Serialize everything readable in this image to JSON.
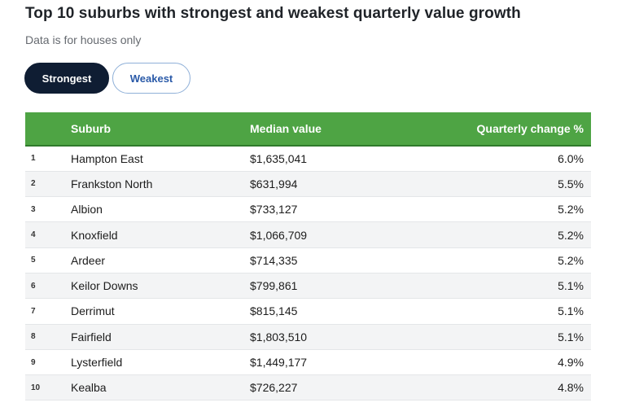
{
  "colors": {
    "accent": "#4ea444",
    "stripe": "#f3f4f5",
    "toggle_active_bg": "#0f1d33",
    "toggle_inactive_text": "#2a5aa8"
  },
  "header": {
    "title": "Top 10 suburbs with strongest and weakest quarterly value growth",
    "subtitle": "Data is for houses only"
  },
  "toggle": {
    "strongest_label": "Strongest",
    "weakest_label": "Weakest",
    "selected": "Strongest"
  },
  "table": {
    "columns": [
      "",
      "Suburb",
      "Median value",
      "Quarterly change %"
    ],
    "rows": [
      {
        "rank": "1",
        "suburb": "Hampton East",
        "median": "$1,635,041",
        "change": "6.0%"
      },
      {
        "rank": "2",
        "suburb": "Frankston North",
        "median": "$631,994",
        "change": "5.5%"
      },
      {
        "rank": "3",
        "suburb": "Albion",
        "median": "$733,127",
        "change": "5.2%"
      },
      {
        "rank": "4",
        "suburb": "Knoxfield",
        "median": "$1,066,709",
        "change": "5.2%"
      },
      {
        "rank": "5",
        "suburb": "Ardeer",
        "median": "$714,335",
        "change": "5.2%"
      },
      {
        "rank": "6",
        "suburb": "Keilor Downs",
        "median": "$799,861",
        "change": "5.1%"
      },
      {
        "rank": "7",
        "suburb": "Derrimut",
        "median": "$815,145",
        "change": "5.1%"
      },
      {
        "rank": "8",
        "suburb": "Fairfield",
        "median": "$1,803,510",
        "change": "5.1%"
      },
      {
        "rank": "9",
        "suburb": "Lysterfield",
        "median": "$1,449,177",
        "change": "4.9%"
      },
      {
        "rank": "10",
        "suburb": "Kealba",
        "median": "$726,227",
        "change": "4.8%"
      }
    ]
  }
}
